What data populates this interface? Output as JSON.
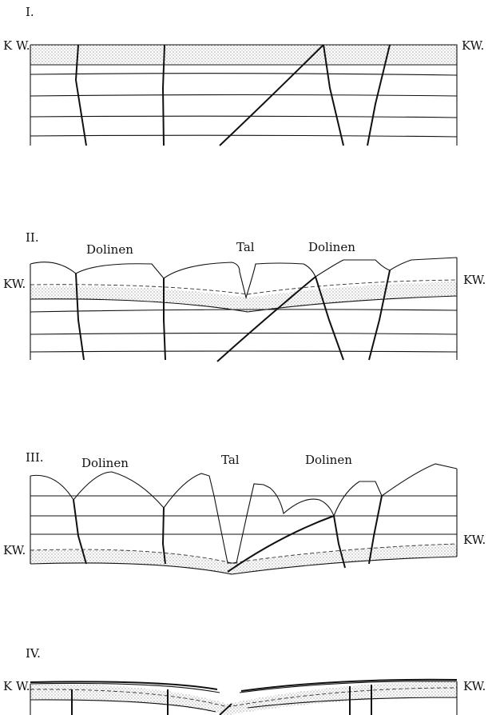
{
  "panels": [
    {
      "numeral": "I.",
      "left_label": "K W.",
      "right_label": "KW."
    },
    {
      "numeral": "II.",
      "left_label": "KW.",
      "right_label": "KW.",
      "labels": [
        "Dolinen",
        "Tal",
        "Dolinen"
      ]
    },
    {
      "numeral": "III.",
      "left_label": "KW.",
      "right_label": "KW.",
      "labels": [
        "Dolinen",
        "Tal",
        "Dolinen"
      ]
    },
    {
      "numeral": "IV.",
      "left_label": "K W.",
      "right_label": "KW."
    }
  ]
}
